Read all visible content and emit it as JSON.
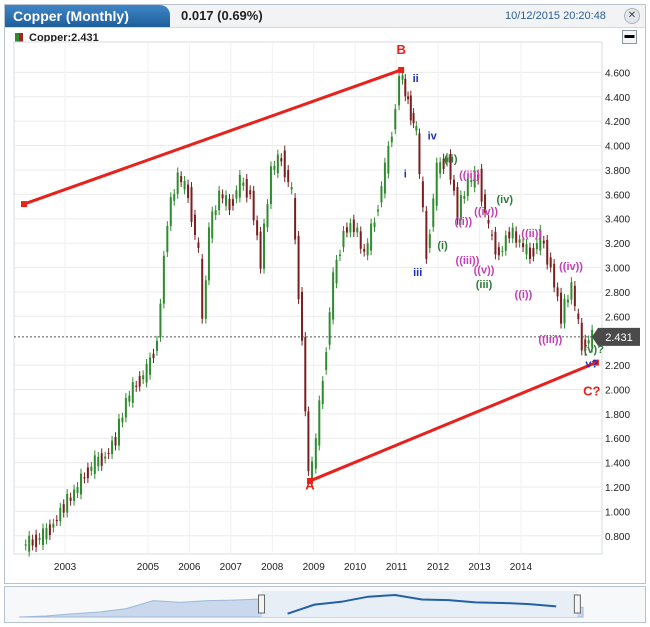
{
  "header": {
    "title": "Copper (Monthly)",
    "change": "0.017 (0.69%)",
    "datetime": "10/12/2015 20:20:48",
    "close_symbol": "✕",
    "minimize_symbol": "▬"
  },
  "series_label": "Copper:2.431",
  "colors": {
    "up": "#2e8b2e",
    "down": "#7a1f1f",
    "trend": "#e8211c",
    "accent": "#2360a5"
  },
  "chart_data": {
    "type": "line",
    "title": "Copper (Monthly)",
    "x_ticks": [
      "2003",
      "2005",
      "2006",
      "2007",
      "2008",
      "2009",
      "2010",
      "2011",
      "2012",
      "2013",
      "2014"
    ],
    "y_ticks": [
      "4.600",
      "4.400",
      "4.200",
      "4.000",
      "3.800",
      "3.600",
      "3.400",
      "3.200",
      "3.000",
      "2.800",
      "2.600",
      "2.200",
      "2.000",
      "1.800",
      "1.600",
      "1.400",
      "1.200",
      "1.000",
      "0.800"
    ],
    "ylim": [
      0.7,
      4.8
    ],
    "last_value": "2.431",
    "series": [
      {
        "name": "Copper",
        "x": [
          2002.0,
          2002.25,
          2002.5,
          2002.75,
          2003.0,
          2003.25,
          2003.5,
          2003.75,
          2004.0,
          2004.25,
          2004.5,
          2004.75,
          2005.0,
          2005.25,
          2005.5,
          2005.75,
          2006.0,
          2006.25,
          2006.35,
          2006.5,
          2006.75,
          2007.0,
          2007.25,
          2007.5,
          2007.75,
          2008.0,
          2008.25,
          2008.5,
          2008.75,
          2008.9,
          2009.0,
          2009.25,
          2009.5,
          2009.75,
          2010.0,
          2010.25,
          2010.5,
          2010.75,
          2011.0,
          2011.1,
          2011.5,
          2011.75,
          2012.0,
          2012.25,
          2012.5,
          2012.75,
          2013.0,
          2013.25,
          2013.5,
          2013.75,
          2014.0,
          2014.25,
          2014.5,
          2014.75,
          2015.0,
          2015.25,
          2015.5,
          2015.75
        ],
        "y": [
          0.72,
          0.75,
          0.8,
          0.9,
          1.05,
          1.15,
          1.3,
          1.4,
          1.45,
          1.6,
          1.9,
          2.05,
          2.15,
          2.4,
          3.4,
          3.75,
          3.6,
          3.1,
          2.55,
          3.3,
          3.6,
          3.5,
          3.7,
          3.6,
          3.05,
          3.8,
          3.9,
          3.6,
          2.4,
          1.3,
          1.35,
          2.1,
          2.9,
          3.3,
          3.35,
          3.1,
          3.4,
          3.8,
          4.3,
          4.6,
          4.1,
          3.1,
          3.8,
          3.9,
          3.45,
          3.7,
          3.75,
          3.3,
          3.1,
          3.3,
          3.2,
          3.1,
          3.25,
          3.0,
          2.6,
          2.85,
          2.35,
          2.43
        ]
      }
    ],
    "trendlines": [
      {
        "name": "upper",
        "x": [
          2002.0,
          2011.1
        ],
        "y": [
          3.52,
          4.62
        ]
      },
      {
        "name": "lower",
        "x": [
          2008.9,
          2015.8
        ],
        "y": [
          1.25,
          2.22
        ]
      }
    ],
    "annotations": [
      {
        "text": "B",
        "x": 2011.1,
        "y": 4.75,
        "color": "#e8211c"
      },
      {
        "text": "A",
        "x": 2008.9,
        "y": 1.18,
        "color": "#e8211c"
      },
      {
        "text": "C?",
        "x": 2015.7,
        "y": 1.95,
        "color": "#e8211c"
      },
      {
        "text": "ii",
        "x": 2011.45,
        "y": 4.52,
        "color": "#1d2fb3"
      },
      {
        "text": "iv",
        "x": 2011.85,
        "y": 4.05,
        "color": "#1d2fb3"
      },
      {
        "text": "i",
        "x": 2011.2,
        "y": 3.74,
        "color": "#1d2fb3"
      },
      {
        "text": "iii",
        "x": 2011.5,
        "y": 2.93,
        "color": "#1d2fb3"
      },
      {
        "text": "v?",
        "x": 2015.7,
        "y": 2.18,
        "color": "#1d2fb3"
      },
      {
        "text": "(ii)",
        "x": 2012.3,
        "y": 3.86,
        "color": "#2f7a3a"
      },
      {
        "text": "(i)",
        "x": 2012.1,
        "y": 3.15,
        "color": "#2f7a3a"
      },
      {
        "text": "(iii)",
        "x": 2013.1,
        "y": 2.83,
        "color": "#2f7a3a"
      },
      {
        "text": "(iv)",
        "x": 2013.6,
        "y": 3.53,
        "color": "#2f7a3a"
      },
      {
        "text": "(v)?",
        "x": 2015.75,
        "y": 2.3,
        "color": "#2f7a3a"
      },
      {
        "text": "((ii))",
        "x": 2012.75,
        "y": 3.73,
        "color": "#c23fb5"
      },
      {
        "text": "((iv))",
        "x": 2013.15,
        "y": 3.43,
        "color": "#c23fb5"
      },
      {
        "text": "((i))",
        "x": 2012.6,
        "y": 3.35,
        "color": "#c23fb5"
      },
      {
        "text": "((iii))",
        "x": 2012.7,
        "y": 3.03,
        "color": "#c23fb5"
      },
      {
        "text": "((v))",
        "x": 2013.1,
        "y": 2.95,
        "color": "#c23fb5"
      },
      {
        "text": "((ii))",
        "x": 2014.25,
        "y": 3.25,
        "color": "#c23fb5"
      },
      {
        "text": "((iv))",
        "x": 2015.2,
        "y": 2.98,
        "color": "#c23fb5"
      },
      {
        "text": "((i))",
        "x": 2014.05,
        "y": 2.75,
        "color": "#c23fb5"
      },
      {
        "text": "((iii))",
        "x": 2014.7,
        "y": 2.38,
        "color": "#c23fb5"
      }
    ],
    "grid": true,
    "legend": "none"
  },
  "navigator": {
    "values": [
      0.72,
      0.9,
      1.3,
      1.6,
      2.2,
      3.6,
      3.3,
      3.6,
      3.7,
      3.9,
      1.3,
      2.9,
      3.4,
      4.3,
      4.6,
      3.8,
      3.7,
      3.3,
      3.2,
      3.0,
      2.6,
      2.43
    ],
    "selected_range": [
      0.43,
      0.99
    ]
  }
}
